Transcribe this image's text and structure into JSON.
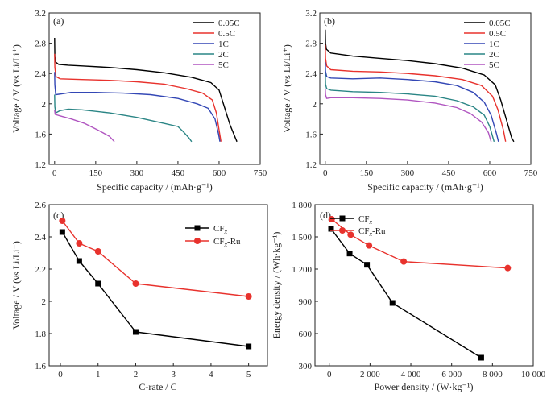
{
  "colors": {
    "black": "#000000",
    "red": "#e8322d",
    "blue": "#3347b5",
    "teal": "#2a8585",
    "purple": "#b055c0",
    "axis": "#222222"
  },
  "chart_data": [
    {
      "panel": "(a)",
      "type": "line",
      "xlabel": "Specific capacity / (mAh·g⁻¹)",
      "ylabel": "Voltage / V (vs Li/Li⁺)",
      "xlim": [
        -20,
        750
      ],
      "ylim": [
        1.2,
        3.2
      ],
      "xticks": [
        0,
        150,
        300,
        450,
        600,
        750
      ],
      "yticks": [
        1.2,
        1.6,
        2.0,
        2.4,
        2.8,
        3.2
      ],
      "legend_position": "top-right",
      "series": [
        {
          "name": "0.05C",
          "color": "#000000",
          "points": [
            [
              0,
              2.87
            ],
            [
              1,
              2.62
            ],
            [
              4,
              2.55
            ],
            [
              15,
              2.52
            ],
            [
              50,
              2.51
            ],
            [
              100,
              2.5
            ],
            [
              200,
              2.48
            ],
            [
              300,
              2.45
            ],
            [
              400,
              2.41
            ],
            [
              500,
              2.35
            ],
            [
              570,
              2.28
            ],
            [
              600,
              2.18
            ],
            [
              620,
              1.95
            ],
            [
              640,
              1.72
            ],
            [
              665,
              1.5
            ]
          ]
        },
        {
          "name": "0.5C",
          "color": "#e8322d",
          "points": [
            [
              0,
              2.66
            ],
            [
              1,
              2.48
            ],
            [
              5,
              2.36
            ],
            [
              20,
              2.33
            ],
            [
              100,
              2.32
            ],
            [
              200,
              2.31
            ],
            [
              300,
              2.29
            ],
            [
              400,
              2.26
            ],
            [
              480,
              2.2
            ],
            [
              540,
              2.14
            ],
            [
              575,
              2.05
            ],
            [
              590,
              1.88
            ],
            [
              600,
              1.65
            ],
            [
              607,
              1.5
            ]
          ]
        },
        {
          "name": "1C",
          "color": "#3347b5",
          "points": [
            [
              0,
              2.42
            ],
            [
              1,
              2.25
            ],
            [
              4,
              2.12
            ],
            [
              25,
              2.13
            ],
            [
              60,
              2.15
            ],
            [
              150,
              2.15
            ],
            [
              250,
              2.14
            ],
            [
              350,
              2.12
            ],
            [
              450,
              2.07
            ],
            [
              520,
              2.0
            ],
            [
              560,
              1.94
            ],
            [
              585,
              1.8
            ],
            [
              598,
              1.6
            ],
            [
              603,
              1.5
            ]
          ]
        },
        {
          "name": "2C",
          "color": "#2a8585",
          "points": [
            [
              0,
              2.12
            ],
            [
              1,
              1.96
            ],
            [
              4,
              1.88
            ],
            [
              20,
              1.91
            ],
            [
              50,
              1.93
            ],
            [
              100,
              1.92
            ],
            [
              200,
              1.88
            ],
            [
              300,
              1.82
            ],
            [
              400,
              1.74
            ],
            [
              450,
              1.7
            ],
            [
              470,
              1.63
            ],
            [
              490,
              1.55
            ],
            [
              500,
              1.5
            ]
          ]
        },
        {
          "name": "5C",
          "color": "#b055c0",
          "points": [
            [
              0,
              1.92
            ],
            [
              2,
              1.86
            ],
            [
              20,
              1.84
            ],
            [
              60,
              1.8
            ],
            [
              110,
              1.74
            ],
            [
              160,
              1.65
            ],
            [
              200,
              1.57
            ],
            [
              218,
              1.5
            ]
          ]
        }
      ]
    },
    {
      "panel": "(b)",
      "type": "line",
      "xlabel": "Specific capacity / (mAh·g⁻¹)",
      "ylabel": "Voltage / V (vs Li/Li⁺)",
      "xlim": [
        -20,
        750
      ],
      "ylim": [
        1.2,
        3.2
      ],
      "xticks": [
        0,
        150,
        300,
        450,
        600,
        750
      ],
      "yticks": [
        1.2,
        1.6,
        2.0,
        2.4,
        2.8,
        3.2
      ],
      "legend_position": "top-right",
      "series": [
        {
          "name": "0.05C",
          "color": "#000000",
          "points": [
            [
              0,
              2.98
            ],
            [
              1,
              2.8
            ],
            [
              4,
              2.72
            ],
            [
              20,
              2.67
            ],
            [
              100,
              2.63
            ],
            [
              200,
              2.6
            ],
            [
              300,
              2.57
            ],
            [
              400,
              2.53
            ],
            [
              500,
              2.47
            ],
            [
              580,
              2.38
            ],
            [
              620,
              2.25
            ],
            [
              640,
              2.05
            ],
            [
              660,
              1.8
            ],
            [
              680,
              1.55
            ],
            [
              688,
              1.5
            ]
          ]
        },
        {
          "name": "0.5C",
          "color": "#e8322d",
          "points": [
            [
              0,
              2.78
            ],
            [
              1,
              2.6
            ],
            [
              5,
              2.5
            ],
            [
              20,
              2.45
            ],
            [
              100,
              2.43
            ],
            [
              200,
              2.42
            ],
            [
              300,
              2.4
            ],
            [
              400,
              2.37
            ],
            [
              500,
              2.32
            ],
            [
              570,
              2.24
            ],
            [
              610,
              2.1
            ],
            [
              630,
              1.92
            ],
            [
              650,
              1.65
            ],
            [
              658,
              1.5
            ]
          ]
        },
        {
          "name": "1C",
          "color": "#3347b5",
          "points": [
            [
              0,
              2.55
            ],
            [
              1,
              2.43
            ],
            [
              5,
              2.36
            ],
            [
              20,
              2.34
            ],
            [
              100,
              2.33
            ],
            [
              200,
              2.34
            ],
            [
              300,
              2.32
            ],
            [
              400,
              2.29
            ],
            [
              480,
              2.24
            ],
            [
              540,
              2.15
            ],
            [
              580,
              2.02
            ],
            [
              605,
              1.85
            ],
            [
              625,
              1.6
            ],
            [
              632,
              1.5
            ]
          ]
        },
        {
          "name": "2C",
          "color": "#2a8585",
          "points": [
            [
              0,
              2.4
            ],
            [
              1,
              2.26
            ],
            [
              5,
              2.2
            ],
            [
              20,
              2.18
            ],
            [
              100,
              2.16
            ],
            [
              200,
              2.15
            ],
            [
              300,
              2.13
            ],
            [
              400,
              2.1
            ],
            [
              480,
              2.04
            ],
            [
              540,
              1.96
            ],
            [
              580,
              1.85
            ],
            [
              600,
              1.7
            ],
            [
              612,
              1.55
            ],
            [
              616,
              1.5
            ]
          ]
        },
        {
          "name": "5C",
          "color": "#b055c0",
          "points": [
            [
              0,
              2.2
            ],
            [
              1,
              2.12
            ],
            [
              5,
              2.07
            ],
            [
              20,
              2.08
            ],
            [
              100,
              2.08
            ],
            [
              200,
              2.07
            ],
            [
              300,
              2.05
            ],
            [
              400,
              2.01
            ],
            [
              480,
              1.95
            ],
            [
              530,
              1.87
            ],
            [
              570,
              1.76
            ],
            [
              595,
              1.62
            ],
            [
              605,
              1.5
            ]
          ]
        }
      ]
    },
    {
      "panel": "(c)",
      "type": "line",
      "markers": true,
      "xlabel": "C-rate / C",
      "ylabel": "Voltage / V (vs Li/Li⁺)",
      "xlim": [
        -0.3,
        5.5
      ],
      "ylim": [
        1.6,
        2.6
      ],
      "xticks": [
        0,
        1,
        2,
        3,
        4,
        5
      ],
      "yticks": [
        1.6,
        1.8,
        2.0,
        2.2,
        2.4,
        2.6
      ],
      "legend_position": "top-right",
      "series": [
        {
          "name": "CFx",
          "label_main": "CF",
          "label_sub": "x",
          "label_rest": "",
          "color": "#000000",
          "marker": "square",
          "points": [
            [
              0.05,
              2.43
            ],
            [
              0.5,
              2.25
            ],
            [
              1,
              2.11
            ],
            [
              2,
              1.81
            ],
            [
              5,
              1.72
            ]
          ]
        },
        {
          "name": "CFx-Ru",
          "label_main": "CF",
          "label_sub": "x",
          "label_rest": "-Ru",
          "color": "#e8322d",
          "marker": "circle",
          "points": [
            [
              0.05,
              2.5
            ],
            [
              0.5,
              2.36
            ],
            [
              1,
              2.31
            ],
            [
              2,
              2.11
            ],
            [
              5,
              2.03
            ]
          ]
        }
      ]
    },
    {
      "panel": "(d)",
      "type": "line",
      "markers": true,
      "xlabel": "Power density / (W·kg⁻¹)",
      "ylabel": "Energy density / (Wh·kg⁻¹)",
      "xlim": [
        -700,
        10000
      ],
      "ylim": [
        300,
        1800
      ],
      "xticks": [
        0,
        2000,
        4000,
        6000,
        8000,
        10000
      ],
      "xtick_labels": [
        "0",
        "2 000",
        "4 000",
        "6 000",
        "8 000",
        "10 000"
      ],
      "yticks": [
        300,
        600,
        900,
        1200,
        1500,
        1800
      ],
      "ytick_labels": [
        "300",
        "600",
        "900",
        "1 200",
        "1 500",
        "1 800"
      ],
      "legend_position": "top-left",
      "series": [
        {
          "name": "CFx",
          "label_main": "CF",
          "label_sub": "x",
          "label_rest": "",
          "color": "#000000",
          "marker": "square",
          "points": [
            [
              90,
              1575
            ],
            [
              1000,
              1345
            ],
            [
              1850,
              1240
            ],
            [
              3100,
              885
            ],
            [
              7450,
              375
            ]
          ]
        },
        {
          "name": "CFx-Ru",
          "label_main": "CF",
          "label_sub": "x",
          "label_rest": "-Ru",
          "color": "#e8322d",
          "marker": "circle",
          "points": [
            [
              120,
              1665
            ],
            [
              1050,
              1520
            ],
            [
              1950,
              1420
            ],
            [
              3650,
              1270
            ],
            [
              8750,
              1210
            ]
          ]
        }
      ]
    }
  ]
}
